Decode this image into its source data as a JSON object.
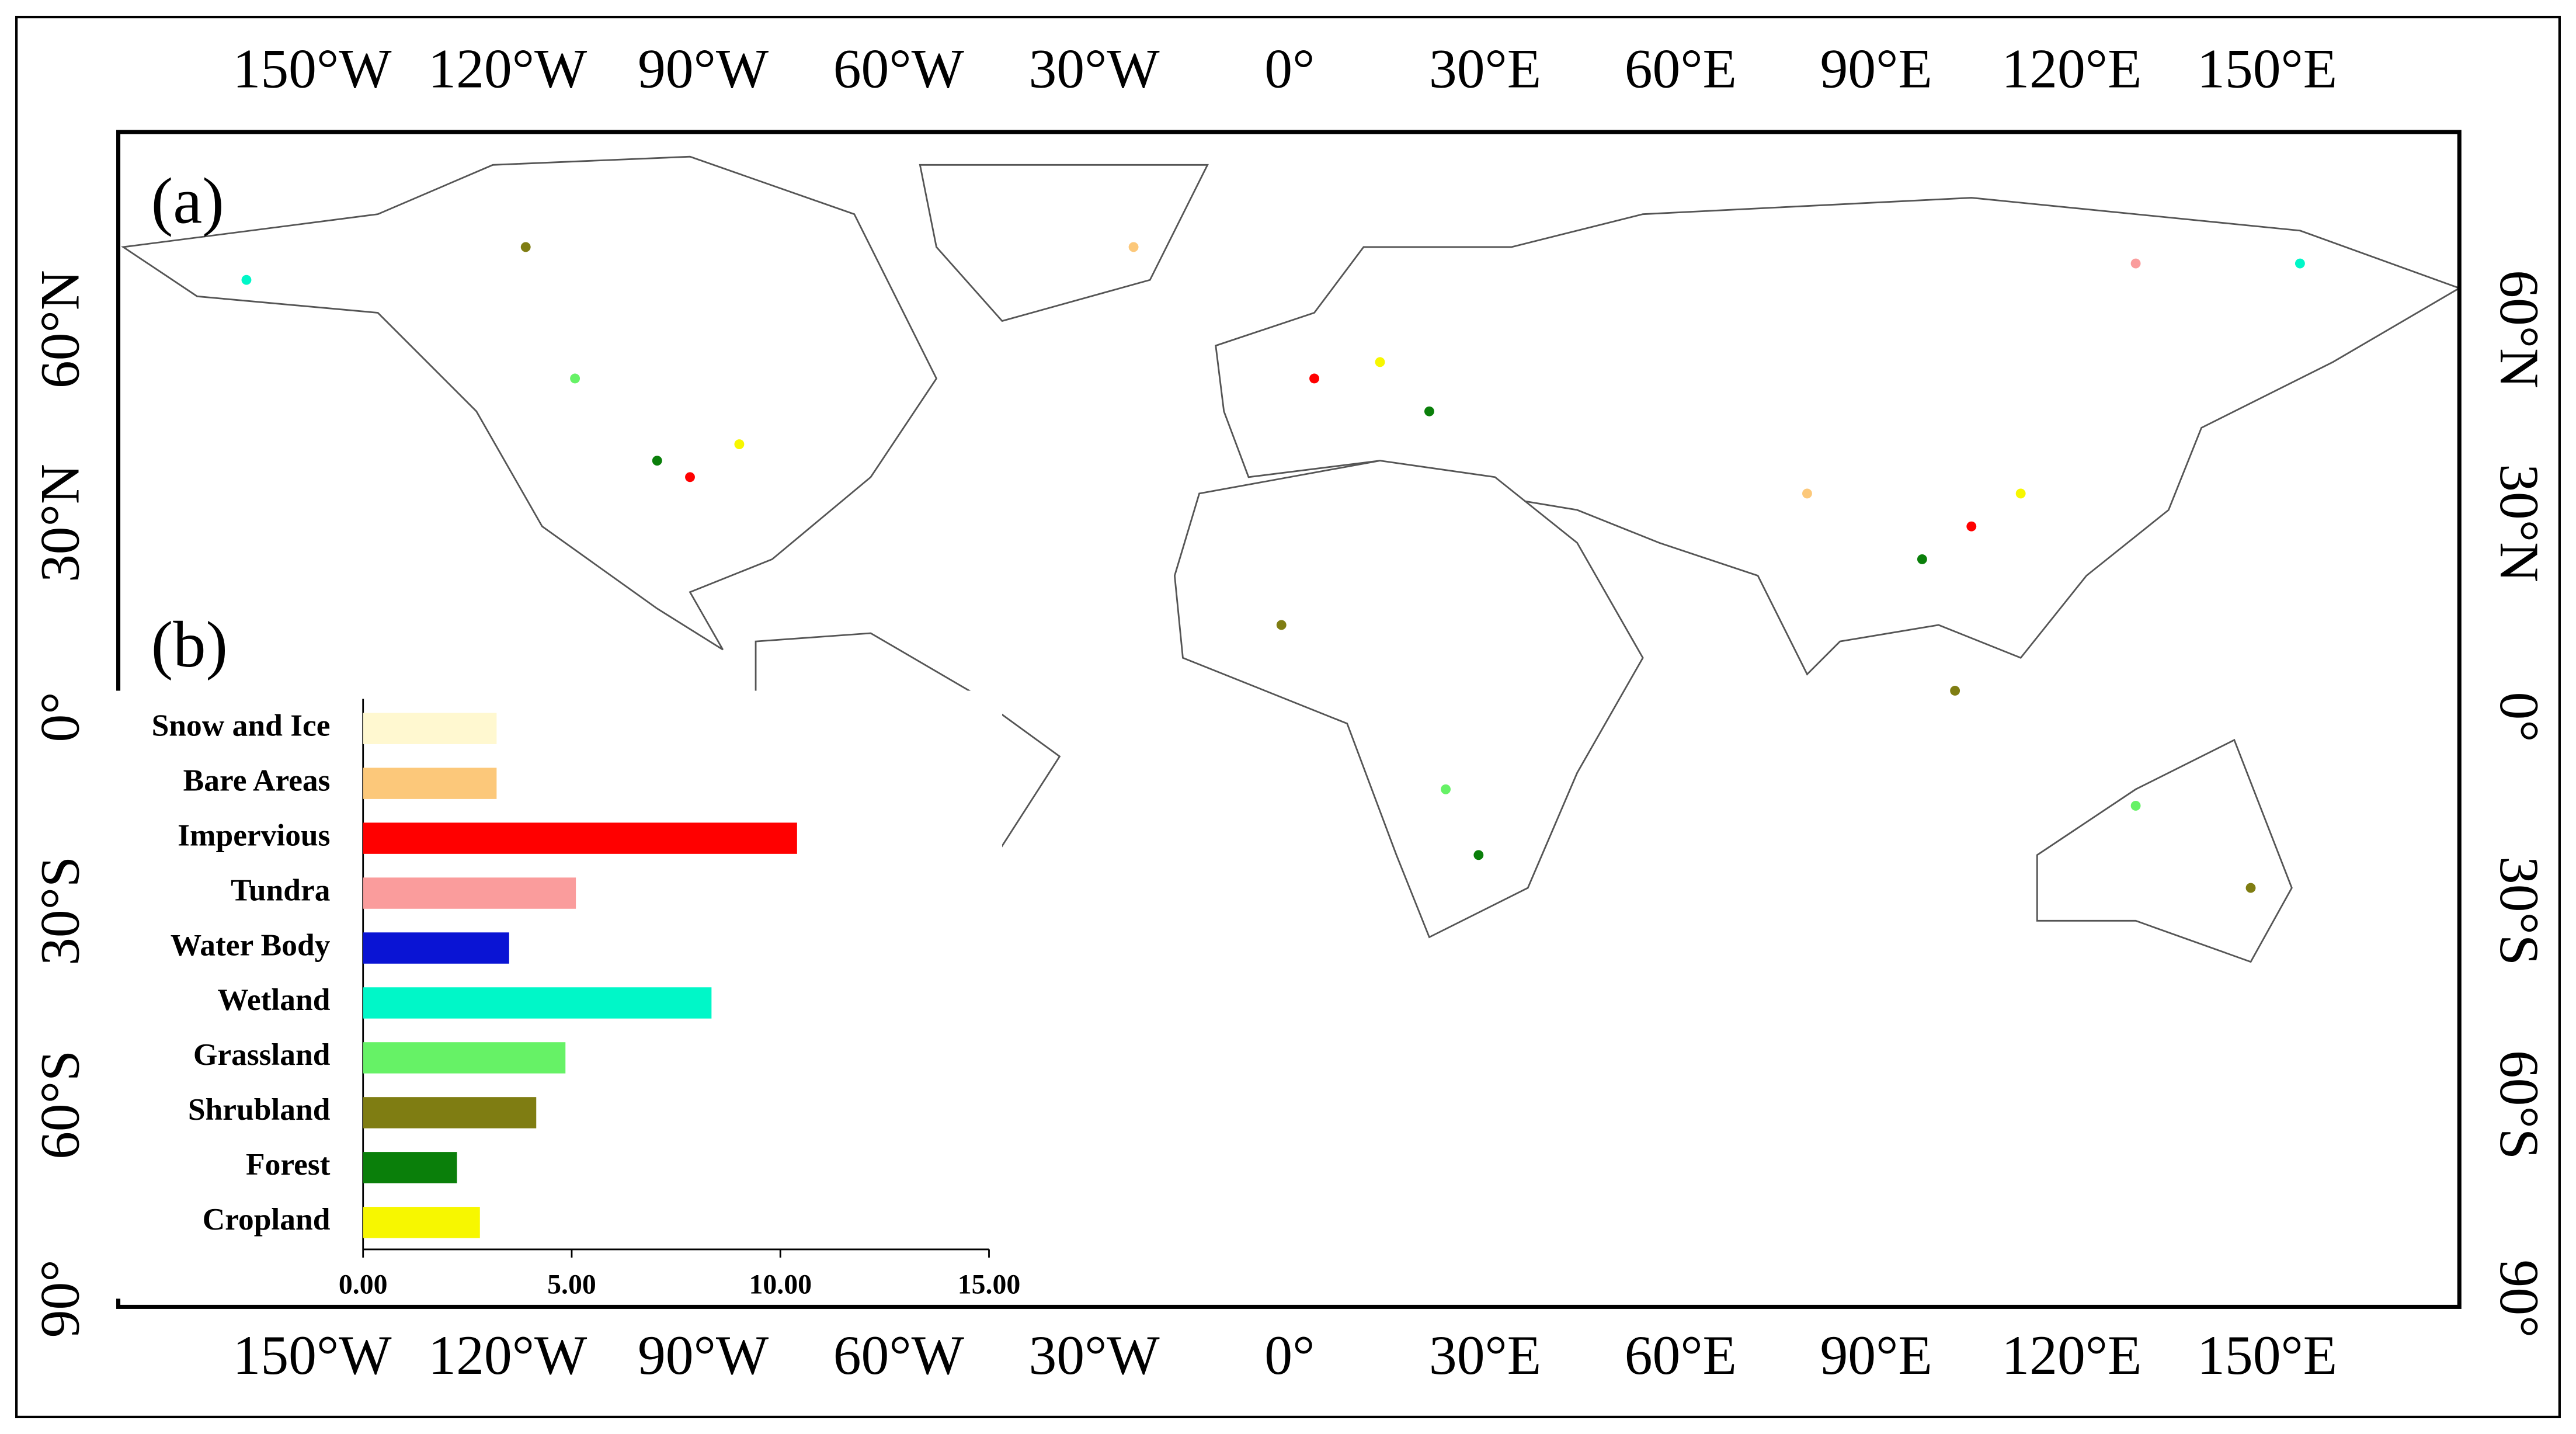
{
  "map": {
    "panel_label": "(a)",
    "lon_labels": [
      "150°W",
      "120°W",
      "90°W",
      "60°W",
      "30°W",
      "0°",
      "30°E",
      "60°E",
      "90°E",
      "120°E",
      "150°E"
    ],
    "lat_labels": [
      "60°N",
      "30°N",
      "0°",
      "30°S",
      "60°S",
      "90°"
    ]
  },
  "chart_data": {
    "type": "bar",
    "orientation": "horizontal",
    "panel_label": "(b)",
    "categories": [
      "Snow and Ice",
      "Bare Areas",
      "Impervious",
      "Tundra",
      "Water Body",
      "Wetland",
      "Grassland",
      "Shrubland",
      "Forest",
      "Cropland"
    ],
    "values": [
      3.2,
      3.2,
      10.4,
      5.1,
      3.5,
      8.35,
      4.85,
      4.15,
      2.25,
      2.8
    ],
    "colors": [
      "#fff8d0",
      "#fcc87a",
      "#ff0000",
      "#fa9c9c",
      "#0a14d4",
      "#00f7c8",
      "#66f266",
      "#7f7d12",
      "#0a7f0a",
      "#f7f700"
    ],
    "xlim": [
      0,
      15
    ],
    "xticks": [
      {
        "value": 0,
        "label": "0.00"
      },
      {
        "value": 5,
        "label": "5.00"
      },
      {
        "value": 10,
        "label": "10.00"
      },
      {
        "value": 15,
        "label": "15.00"
      }
    ]
  }
}
